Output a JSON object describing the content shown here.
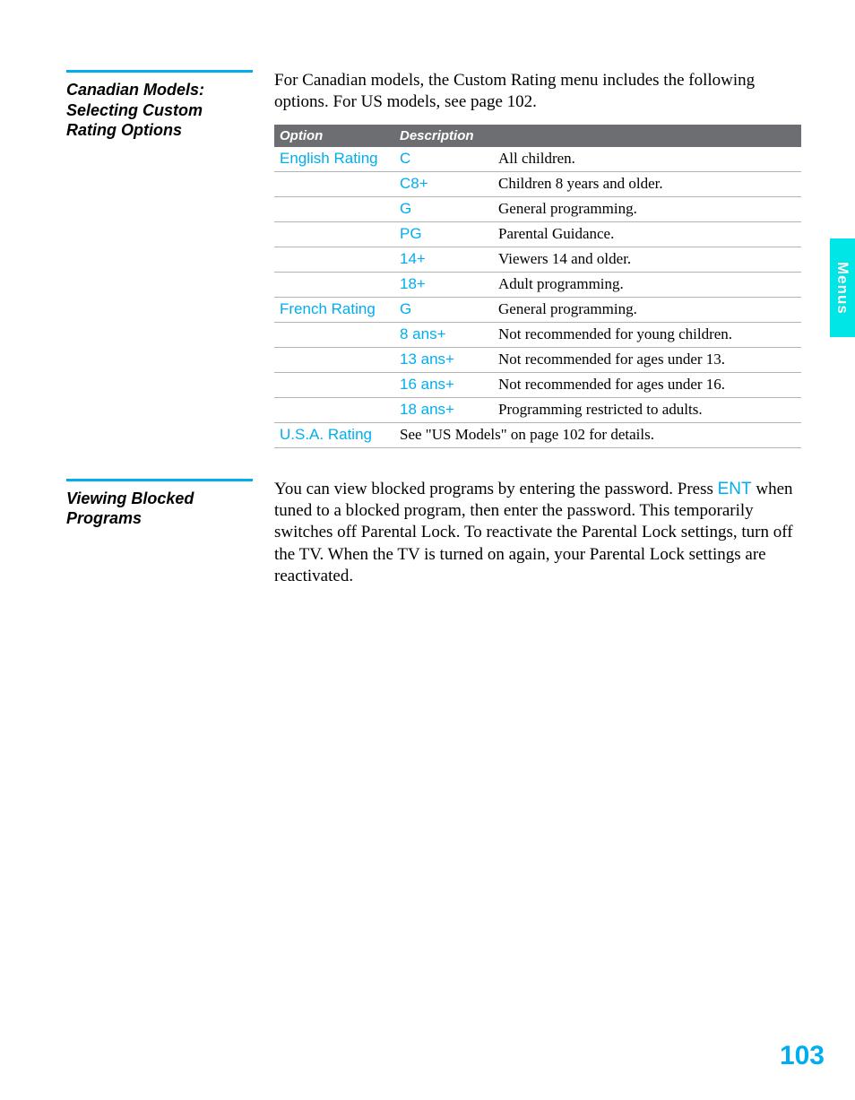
{
  "colors": {
    "accent": "#00aeef",
    "tab_bg": "#00e5e5",
    "header_bg": "#6d6e71",
    "header_fg": "#ffffff",
    "text": "#000000",
    "border": "#b3b3b3"
  },
  "side_tab": "Menus",
  "page_number": "103",
  "section1": {
    "heading": "Canadian Models: Selecting Custom Rating Options",
    "intro": "For Canadian models, the Custom Rating menu includes the following options. For US models, see page 102.",
    "table": {
      "headers": {
        "option": "Option",
        "description": "Description"
      },
      "rows": [
        {
          "option": "English Rating",
          "code": "C",
          "desc": "All children."
        },
        {
          "option": "",
          "code": "C8+",
          "desc": "Children 8 years and older."
        },
        {
          "option": "",
          "code": "G",
          "desc": "General programming."
        },
        {
          "option": "",
          "code": "PG",
          "desc": "Parental Guidance."
        },
        {
          "option": "",
          "code": "14+",
          "desc": "Viewers 14 and older."
        },
        {
          "option": "",
          "code": "18+",
          "desc": "Adult programming."
        },
        {
          "option": "French Rating",
          "code": "G",
          "desc": "General programming."
        },
        {
          "option": "",
          "code": "8 ans+",
          "desc": "Not recommended for young children."
        },
        {
          "option": "",
          "code": "13 ans+",
          "desc": "Not recommended for ages under 13."
        },
        {
          "option": "",
          "code": "16 ans+",
          "desc": "Not recommended for ages under 16."
        },
        {
          "option": "",
          "code": "18 ans+",
          "desc": "Programming restricted to adults."
        }
      ],
      "footer": {
        "option": "U.S.A. Rating",
        "desc": "See \"US Models\" on page 102 for details."
      }
    }
  },
  "section2": {
    "heading": "Viewing Blocked Programs",
    "para_pre": "You can view blocked programs by entering the password. Press ",
    "ent": "ENT",
    "para_post": " when tuned to a blocked program, then enter the password. This temporarily switches off Parental Lock. To reactivate the Parental Lock settings, turn off the TV. When the TV is turned on again, your Parental Lock settings are reactivated."
  }
}
